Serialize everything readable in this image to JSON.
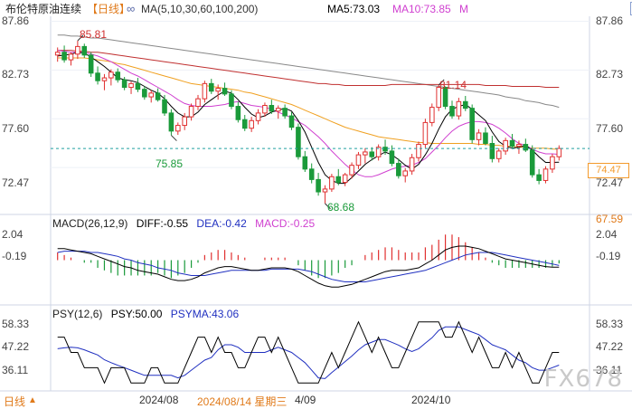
{
  "header": {
    "title": "布伦特原油连续",
    "period_tag": "【日线】",
    "ma_label": "MA(5,10,30,60,100,200)",
    "ma5_label": "MA5:73.03",
    "ma10_label": "MA10:73.85",
    "more_label": "M"
  },
  "colors": {
    "up": "#e03030",
    "down": "#1a9a3a",
    "ma5": "#000000",
    "ma10": "#d040d0",
    "ma30": "#f0a020",
    "ma60": "#888888",
    "ma100": "#c03030",
    "dif": "#000000",
    "dea": "#2030c0",
    "psy": "#000000",
    "psyma": "#2030c0",
    "dashed_price": "#20a0a0"
  },
  "price_axis": {
    "left_ticks": [
      "87.86",
      "82.73",
      "77.60",
      "72.47"
    ],
    "right_ticks": [
      "87.86",
      "82.73",
      "77.60",
      "72.47"
    ],
    "last_price": "74.47"
  },
  "annotations": {
    "high1": "85.81",
    "high2": "81.14",
    "low1": "75.85",
    "low2": "68.68"
  },
  "macd": {
    "label": "MACD(26,12,9)",
    "dif": "DIFF:-0.55",
    "dea": "DEA:-0.42",
    "macd": "MACD:-0.25",
    "left_ticks": [
      "2.04",
      "-0.19"
    ],
    "right_ticks": [
      "67.59",
      "2.04",
      "-0.19"
    ]
  },
  "psy": {
    "label": "PSY(12,6)",
    "psy": "PSY:50.00",
    "psyma": "PSYMA:43.06",
    "left_ticks": [
      "58.33",
      "47.22",
      "36.11"
    ],
    "right_ticks": [
      "58.33",
      "47.22",
      "36.11"
    ]
  },
  "bottom": {
    "period": "日线",
    "arrow": "▲",
    "date1": "2024/08",
    "cursor_date": "2024/08/14 星期三",
    "date2": "4/09",
    "date3": "2024/10"
  },
  "watermark": "FX678",
  "chart_data": {
    "type": "candlestick",
    "title": "布伦特原油连续 日线",
    "ylim": [
      68.0,
      88.0
    ],
    "candles": [
      {
        "o": 84.3,
        "h": 85.1,
        "l": 83.6,
        "c": 84.6
      },
      {
        "o": 84.6,
        "h": 85.3,
        "l": 83.5,
        "c": 83.8
      },
      {
        "o": 83.8,
        "h": 84.6,
        "l": 83.2,
        "c": 84.4
      },
      {
        "o": 84.4,
        "h": 85.81,
        "l": 83.9,
        "c": 85.2
      },
      {
        "o": 85.2,
        "h": 85.5,
        "l": 84.0,
        "c": 84.3
      },
      {
        "o": 84.3,
        "h": 84.6,
        "l": 82.0,
        "c": 82.4
      },
      {
        "o": 82.4,
        "h": 83.1,
        "l": 81.2,
        "c": 81.6
      },
      {
        "o": 81.6,
        "h": 82.3,
        "l": 80.6,
        "c": 81.9
      },
      {
        "o": 81.9,
        "h": 82.8,
        "l": 81.1,
        "c": 82.5
      },
      {
        "o": 82.5,
        "h": 82.9,
        "l": 81.4,
        "c": 81.7
      },
      {
        "o": 81.7,
        "h": 82.0,
        "l": 80.6,
        "c": 80.9
      },
      {
        "o": 80.9,
        "h": 81.5,
        "l": 80.2,
        "c": 81.3
      },
      {
        "o": 81.3,
        "h": 81.9,
        "l": 80.4,
        "c": 80.7
      },
      {
        "o": 80.7,
        "h": 81.0,
        "l": 79.6,
        "c": 79.9
      },
      {
        "o": 79.9,
        "h": 80.6,
        "l": 79.3,
        "c": 80.3
      },
      {
        "o": 80.3,
        "h": 80.8,
        "l": 79.4,
        "c": 79.6
      },
      {
        "o": 79.6,
        "h": 80.1,
        "l": 77.9,
        "c": 78.2
      },
      {
        "o": 78.2,
        "h": 78.6,
        "l": 75.85,
        "c": 76.3
      },
      {
        "o": 76.3,
        "h": 77.2,
        "l": 75.9,
        "c": 76.9
      },
      {
        "o": 76.9,
        "h": 78.2,
        "l": 76.4,
        "c": 77.8
      },
      {
        "o": 77.8,
        "h": 79.2,
        "l": 77.4,
        "c": 78.9
      },
      {
        "o": 78.9,
        "h": 80.1,
        "l": 78.5,
        "c": 79.7
      },
      {
        "o": 79.7,
        "h": 81.6,
        "l": 79.3,
        "c": 81.3
      },
      {
        "o": 81.3,
        "h": 81.8,
        "l": 80.2,
        "c": 80.5
      },
      {
        "o": 80.5,
        "h": 81.2,
        "l": 79.6,
        "c": 80.8
      },
      {
        "o": 80.8,
        "h": 81.4,
        "l": 80.0,
        "c": 80.2
      },
      {
        "o": 80.2,
        "h": 80.6,
        "l": 78.6,
        "c": 78.9
      },
      {
        "o": 78.9,
        "h": 79.4,
        "l": 77.2,
        "c": 77.5
      },
      {
        "o": 77.5,
        "h": 78.0,
        "l": 76.3,
        "c": 76.6
      },
      {
        "o": 76.6,
        "h": 77.8,
        "l": 76.2,
        "c": 77.4
      },
      {
        "o": 77.4,
        "h": 78.6,
        "l": 77.0,
        "c": 78.2
      },
      {
        "o": 78.2,
        "h": 79.3,
        "l": 77.8,
        "c": 79.0
      },
      {
        "o": 79.0,
        "h": 79.6,
        "l": 78.1,
        "c": 78.4
      },
      {
        "o": 78.4,
        "h": 79.0,
        "l": 77.6,
        "c": 78.7
      },
      {
        "o": 78.7,
        "h": 79.1,
        "l": 77.6,
        "c": 77.9
      },
      {
        "o": 77.9,
        "h": 78.3,
        "l": 76.4,
        "c": 76.7
      },
      {
        "o": 76.7,
        "h": 77.1,
        "l": 73.3,
        "c": 73.6
      },
      {
        "o": 73.6,
        "h": 74.2,
        "l": 72.0,
        "c": 72.3
      },
      {
        "o": 72.3,
        "h": 72.9,
        "l": 70.8,
        "c": 71.2
      },
      {
        "o": 71.2,
        "h": 71.9,
        "l": 69.5,
        "c": 69.9
      },
      {
        "o": 69.9,
        "h": 70.6,
        "l": 68.68,
        "c": 70.2
      },
      {
        "o": 70.2,
        "h": 71.8,
        "l": 69.9,
        "c": 71.5
      },
      {
        "o": 71.5,
        "h": 72.3,
        "l": 70.6,
        "c": 70.9
      },
      {
        "o": 70.9,
        "h": 71.9,
        "l": 70.5,
        "c": 71.7
      },
      {
        "o": 71.7,
        "h": 73.0,
        "l": 71.3,
        "c": 72.7
      },
      {
        "o": 72.7,
        "h": 74.1,
        "l": 72.3,
        "c": 73.8
      },
      {
        "o": 73.8,
        "h": 74.5,
        "l": 72.9,
        "c": 74.1
      },
      {
        "o": 74.1,
        "h": 74.6,
        "l": 73.2,
        "c": 73.6
      },
      {
        "o": 73.6,
        "h": 74.9,
        "l": 73.2,
        "c": 74.6
      },
      {
        "o": 74.6,
        "h": 75.4,
        "l": 73.8,
        "c": 74.2
      },
      {
        "o": 74.2,
        "h": 74.8,
        "l": 72.6,
        "c": 72.9
      },
      {
        "o": 72.9,
        "h": 73.4,
        "l": 71.3,
        "c": 71.6
      },
      {
        "o": 71.6,
        "h": 72.4,
        "l": 70.9,
        "c": 72.1
      },
      {
        "o": 72.1,
        "h": 73.9,
        "l": 71.7,
        "c": 73.5
      },
      {
        "o": 73.5,
        "h": 75.2,
        "l": 73.1,
        "c": 74.9
      },
      {
        "o": 74.9,
        "h": 77.6,
        "l": 74.5,
        "c": 77.2
      },
      {
        "o": 77.2,
        "h": 79.2,
        "l": 76.8,
        "c": 78.8
      },
      {
        "o": 78.8,
        "h": 81.14,
        "l": 78.4,
        "c": 80.9
      },
      {
        "o": 80.9,
        "h": 81.0,
        "l": 78.6,
        "c": 78.9
      },
      {
        "o": 78.9,
        "h": 79.5,
        "l": 77.6,
        "c": 77.9
      },
      {
        "o": 77.9,
        "h": 79.8,
        "l": 77.5,
        "c": 79.4
      },
      {
        "o": 79.4,
        "h": 80.0,
        "l": 78.4,
        "c": 78.7
      },
      {
        "o": 78.7,
        "h": 79.1,
        "l": 75.0,
        "c": 75.4
      },
      {
        "o": 75.4,
        "h": 76.5,
        "l": 74.8,
        "c": 76.1
      },
      {
        "o": 76.1,
        "h": 76.7,
        "l": 74.8,
        "c": 75.0
      },
      {
        "o": 75.0,
        "h": 75.8,
        "l": 73.0,
        "c": 73.4
      },
      {
        "o": 73.4,
        "h": 74.5,
        "l": 73.0,
        "c": 74.2
      },
      {
        "o": 74.2,
        "h": 75.6,
        "l": 73.8,
        "c": 75.3
      },
      {
        "o": 75.3,
        "h": 76.0,
        "l": 74.4,
        "c": 74.7
      },
      {
        "o": 74.7,
        "h": 75.3,
        "l": 73.9,
        "c": 74.9
      },
      {
        "o": 74.9,
        "h": 75.5,
        "l": 74.1,
        "c": 74.3
      },
      {
        "o": 74.3,
        "h": 74.8,
        "l": 71.4,
        "c": 71.7
      },
      {
        "o": 71.7,
        "h": 72.3,
        "l": 70.7,
        "c": 71.1
      },
      {
        "o": 71.1,
        "h": 72.6,
        "l": 70.8,
        "c": 72.3
      },
      {
        "o": 72.3,
        "h": 73.9,
        "l": 71.9,
        "c": 73.6
      },
      {
        "o": 73.6,
        "h": 74.8,
        "l": 73.2,
        "c": 74.47
      }
    ],
    "ma5": [
      84.2,
      84.3,
      84.4,
      84.6,
      84.5,
      84.1,
      83.6,
      83.1,
      82.5,
      81.9,
      81.7,
      81.6,
      81.4,
      81.0,
      80.6,
      80.3,
      79.7,
      78.9,
      78.2,
      77.8,
      77.8,
      78.3,
      79.1,
      79.6,
      80.1,
      80.5,
      80.3,
      79.6,
      78.8,
      78.1,
      77.7,
      77.9,
      78.3,
      78.5,
      78.7,
      78.4,
      77.4,
      76.2,
      74.6,
      73.0,
      71.7,
      71.1,
      70.8,
      70.8,
      71.4,
      72.1,
      72.8,
      73.3,
      73.7,
      74.1,
      73.8,
      73.3,
      72.7,
      72.3,
      72.8,
      73.8,
      75.0,
      76.5,
      77.8,
      78.6,
      78.9,
      79.1,
      78.6,
      78.0,
      77.4,
      76.2,
      75.2,
      74.7,
      74.5,
      74.6,
      74.8,
      74.3,
      73.6,
      73.0,
      73.0,
      73.03
    ],
    "ma10": [
      84.8,
      84.7,
      84.6,
      84.6,
      84.6,
      84.4,
      84.2,
      83.9,
      83.6,
      83.2,
      82.8,
      82.4,
      82.1,
      81.7,
      81.3,
      80.9,
      80.5,
      80.1,
      79.6,
      79.2,
      79.0,
      78.9,
      78.9,
      78.9,
      79.0,
      79.1,
      79.3,
      79.4,
      79.2,
      79.0,
      78.9,
      78.8,
      78.6,
      78.3,
      78.0,
      77.7,
      77.3,
      76.9,
      76.3,
      75.7,
      75.0,
      74.2,
      73.5,
      72.8,
      72.2,
      71.7,
      71.5,
      71.5,
      71.7,
      72.0,
      72.3,
      72.5,
      72.6,
      72.7,
      73.0,
      73.4,
      74.1,
      74.8,
      75.6,
      76.3,
      76.8,
      77.1,
      77.3,
      77.3,
      77.2,
      77.0,
      76.6,
      76.1,
      75.5,
      75.0,
      74.8,
      74.4,
      74.1,
      73.9,
      73.9,
      73.85
    ],
    "ma30": [
      84.0,
      84.0,
      84.0,
      84.0,
      84.0,
      83.9,
      83.8,
      83.7,
      83.6,
      83.4,
      83.3,
      83.1,
      82.9,
      82.7,
      82.5,
      82.3,
      82.1,
      81.9,
      81.7,
      81.5,
      81.3,
      81.2,
      81.1,
      81.0,
      80.9,
      80.8,
      80.7,
      80.6,
      80.4,
      80.3,
      80.1,
      79.9,
      79.7,
      79.5,
      79.3,
      79.1,
      78.8,
      78.5,
      78.2,
      77.9,
      77.6,
      77.3,
      77.0,
      76.7,
      76.5,
      76.3,
      76.1,
      75.9,
      75.7,
      75.6,
      75.5,
      75.4,
      75.3,
      75.2,
      75.1,
      75.1,
      75.0,
      75.0,
      75.0,
      75.0,
      75.0,
      75.0,
      75.0,
      74.9,
      74.9,
      74.8,
      74.8,
      74.7,
      74.7,
      74.6,
      74.6,
      74.5,
      74.5,
      74.5,
      74.4,
      74.4
    ],
    "ma60": [
      86.4,
      86.4,
      86.3,
      86.3,
      86.2,
      86.1,
      86.1,
      86.0,
      85.9,
      85.8,
      85.7,
      85.6,
      85.5,
      85.4,
      85.3,
      85.2,
      85.1,
      85.0,
      84.9,
      84.8,
      84.7,
      84.6,
      84.5,
      84.4,
      84.3,
      84.2,
      84.1,
      84.0,
      83.9,
      83.8,
      83.7,
      83.6,
      83.5,
      83.4,
      83.3,
      83.2,
      83.1,
      83.0,
      82.9,
      82.8,
      82.7,
      82.6,
      82.5,
      82.4,
      82.3,
      82.2,
      82.1,
      82.0,
      81.9,
      81.8,
      81.7,
      81.6,
      81.5,
      81.4,
      81.3,
      81.2,
      81.1,
      81.0,
      80.9,
      80.8,
      80.7,
      80.6,
      80.5,
      80.4,
      80.3,
      80.2,
      80.1,
      79.9,
      79.8,
      79.7,
      79.5,
      79.4,
      79.3,
      79.1,
      79.0,
      78.8
    ],
    "ma100": [
      84.8,
      84.8,
      84.8,
      84.7,
      84.7,
      84.6,
      84.6,
      84.5,
      84.4,
      84.3,
      84.2,
      84.1,
      84.0,
      83.9,
      83.8,
      83.7,
      83.6,
      83.5,
      83.4,
      83.3,
      83.2,
      83.1,
      83.0,
      82.9,
      82.8,
      82.7,
      82.6,
      82.5,
      82.4,
      82.3,
      82.2,
      82.1,
      82.0,
      81.9,
      81.8,
      81.7,
      81.6,
      81.5,
      81.4,
      81.3,
      81.3,
      81.2,
      81.2,
      81.1,
      81.1,
      81.1,
      81.1,
      81.1,
      81.1,
      81.1,
      81.2,
      81.2,
      81.2,
      81.2,
      81.2,
      81.2,
      81.2,
      81.2,
      81.2,
      81.2,
      81.2,
      81.2,
      81.2,
      81.2,
      81.1,
      81.1,
      81.1,
      81.1,
      81.0,
      81.0,
      81.0,
      81.0,
      81.0,
      80.9,
      80.9,
      80.9
    ],
    "macd_dif": [
      0.9,
      0.9,
      0.8,
      0.7,
      0.6,
      0.5,
      0.3,
      0.1,
      -0.1,
      -0.3,
      -0.5,
      -0.6,
      -0.8,
      -0.9,
      -1.0,
      -1.1,
      -1.3,
      -1.5,
      -1.6,
      -1.6,
      -1.5,
      -1.3,
      -1.0,
      -0.8,
      -0.6,
      -0.5,
      -0.5,
      -0.6,
      -0.7,
      -0.8,
      -0.8,
      -0.7,
      -0.6,
      -0.6,
      -0.6,
      -0.7,
      -0.9,
      -1.2,
      -1.5,
      -1.8,
      -2.0,
      -2.1,
      -2.1,
      -2.0,
      -1.9,
      -1.7,
      -1.5,
      -1.3,
      -1.1,
      -0.9,
      -0.8,
      -0.8,
      -0.8,
      -0.7,
      -0.6,
      -0.3,
      0.0,
      0.4,
      0.8,
      1.0,
      1.1,
      1.1,
      1.0,
      0.9,
      0.7,
      0.5,
      0.3,
      0.1,
      0.0,
      -0.1,
      -0.2,
      -0.3,
      -0.4,
      -0.5,
      -0.55,
      -0.55
    ],
    "macd_dea": [
      0.6,
      0.7,
      0.7,
      0.7,
      0.7,
      0.6,
      0.6,
      0.5,
      0.4,
      0.3,
      0.1,
      0.0,
      -0.2,
      -0.3,
      -0.4,
      -0.6,
      -0.7,
      -0.8,
      -1.0,
      -1.1,
      -1.2,
      -1.2,
      -1.2,
      -1.1,
      -1.0,
      -0.9,
      -0.8,
      -0.8,
      -0.8,
      -0.8,
      -0.8,
      -0.8,
      -0.7,
      -0.7,
      -0.7,
      -0.7,
      -0.7,
      -0.8,
      -0.9,
      -1.1,
      -1.3,
      -1.5,
      -1.6,
      -1.7,
      -1.7,
      -1.7,
      -1.7,
      -1.6,
      -1.5,
      -1.4,
      -1.3,
      -1.2,
      -1.1,
      -1.0,
      -0.9,
      -0.8,
      -0.6,
      -0.4,
      -0.2,
      0.0,
      0.2,
      0.4,
      0.5,
      0.6,
      0.6,
      0.6,
      0.5,
      0.4,
      0.3,
      0.2,
      0.1,
      0.0,
      -0.1,
      -0.2,
      -0.3,
      -0.42
    ],
    "psy": [
      58.33,
      58.33,
      50.0,
      50.0,
      41.67,
      41.67,
      41.67,
      33.33,
      41.67,
      41.67,
      41.67,
      33.33,
      33.33,
      33.33,
      41.67,
      41.67,
      33.33,
      33.33,
      33.33,
      41.67,
      50.0,
      58.33,
      58.33,
      50.0,
      58.33,
      50.0,
      50.0,
      41.67,
      41.67,
      50.0,
      58.33,
      58.33,
      50.0,
      58.33,
      50.0,
      41.67,
      33.33,
      33.33,
      33.33,
      33.33,
      41.67,
      50.0,
      41.67,
      50.0,
      58.33,
      66.67,
      58.33,
      50.0,
      58.33,
      50.0,
      41.67,
      41.67,
      50.0,
      58.33,
      66.67,
      66.67,
      66.67,
      66.67,
      58.33,
      58.33,
      66.67,
      58.33,
      50.0,
      58.33,
      50.0,
      41.67,
      41.67,
      50.0,
      41.67,
      50.0,
      41.67,
      33.33,
      33.33,
      41.67,
      50.0,
      50.0
    ],
    "psyma": [
      52.0,
      52.5,
      52.8,
      52.5,
      51.4,
      50.0,
      48.6,
      46.0,
      44.4,
      43.0,
      41.7,
      40.3,
      38.9,
      37.5,
      37.5,
      37.5,
      37.5,
      37.5,
      36.1,
      37.5,
      40.3,
      43.1,
      45.8,
      47.2,
      51.4,
      54.2,
      54.2,
      52.8,
      50.0,
      50.0,
      50.0,
      50.0,
      51.4,
      52.8,
      51.4,
      50.0,
      47.2,
      44.4,
      40.3,
      36.1,
      35.7,
      39.0,
      42.0,
      45.0,
      48.0,
      51.4,
      54.2,
      55.6,
      57.0,
      57.0,
      55.5,
      54.0,
      52.0,
      50.5,
      52.0,
      55.0,
      58.0,
      62.0,
      63.9,
      63.9,
      63.9,
      62.5,
      61.1,
      59.7,
      57.0,
      54.2,
      52.8,
      51.4,
      48.6,
      45.8,
      44.4,
      41.7,
      40.3,
      40.3,
      41.7,
      43.06
    ]
  }
}
